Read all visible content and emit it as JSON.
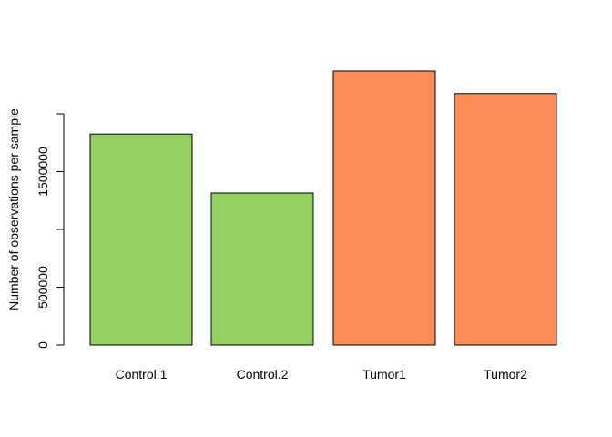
{
  "chart_data": {
    "type": "bar",
    "title": "",
    "xlabel": "",
    "ylabel": "Number of observations per sample",
    "categories": [
      "Control.1",
      "Control.2",
      "Tumor1",
      "Tumor2"
    ],
    "values": [
      1825000,
      1315000,
      2370000,
      2175000
    ],
    "bar_colors": [
      "#93d062",
      "#93d062",
      "#fc8d59",
      "#fc8d59"
    ],
    "bar_border_color": "#000000",
    "y_ticks": [
      0,
      500000,
      1000000,
      1500000,
      2000000
    ],
    "y_tick_labels": [
      "0",
      "500000",
      "",
      "1500000",
      ""
    ],
    "ylim": [
      0,
      2370000
    ],
    "grid": false,
    "legend": "none"
  }
}
